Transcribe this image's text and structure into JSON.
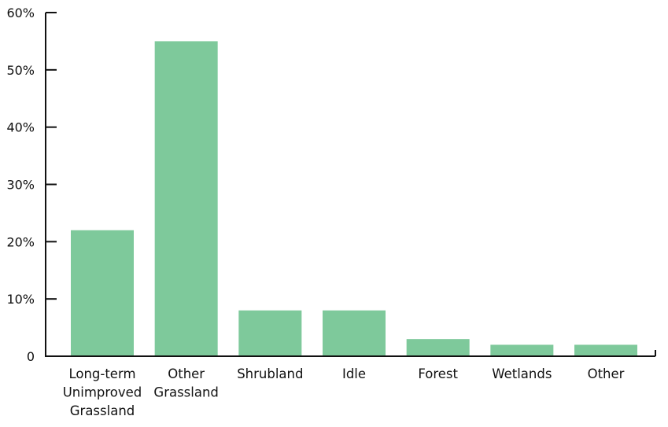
{
  "chart_data": {
    "type": "bar",
    "categories": [
      [
        "Long-term",
        "Unimproved",
        "Grassland"
      ],
      [
        "Other",
        "Grassland"
      ],
      [
        "Shrubland"
      ],
      [
        "Idle"
      ],
      [
        "Forest"
      ],
      [
        "Wetlands"
      ],
      [
        "Other"
      ]
    ],
    "values": [
      22,
      55,
      8,
      8,
      3,
      2,
      2
    ],
    "ylim": [
      0,
      60
    ],
    "yticks": [
      0,
      10,
      20,
      30,
      40,
      50,
      60
    ],
    "ytick_labels": [
      "0",
      "10%",
      "20%",
      "30%",
      "40%",
      "50%",
      "60%"
    ],
    "title": "",
    "xlabel": "",
    "ylabel": "",
    "grid": false,
    "legend": "none",
    "colors": {
      "bar": "#7ec99b",
      "axis": "#111111",
      "text": "#111111"
    }
  }
}
